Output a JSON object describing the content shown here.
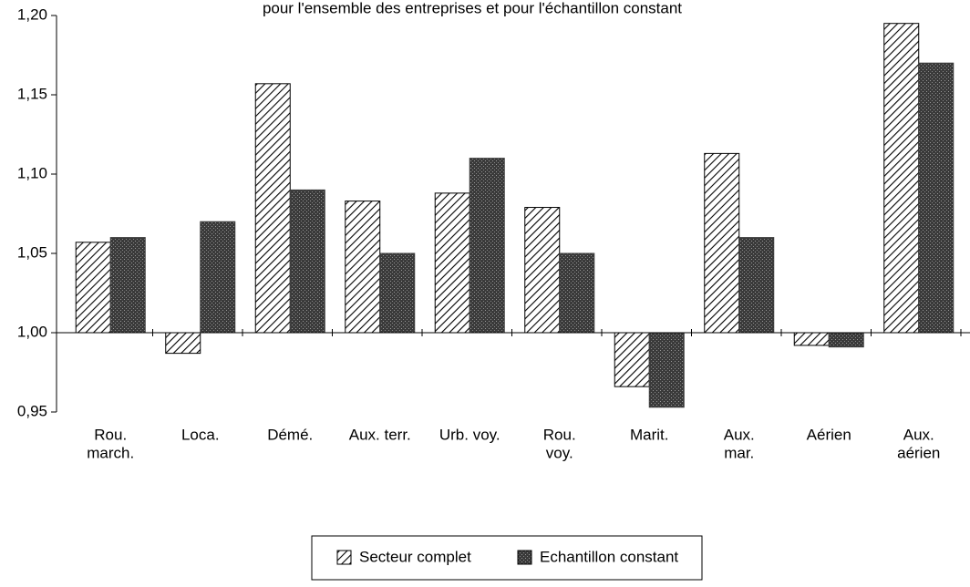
{
  "chart_data": {
    "type": "bar",
    "title": "pour l'ensemble des entreprises et pour l'échantillon constant",
    "categories": [
      [
        "Rou.",
        "march."
      ],
      [
        "Loca."
      ],
      [
        "Démé."
      ],
      [
        "Aux. terr."
      ],
      [
        "Urb. voy."
      ],
      [
        "Rou.",
        "voy."
      ],
      [
        "Marit."
      ],
      [
        "Aux.",
        "mar."
      ],
      [
        "Aérien"
      ],
      [
        "Aux.",
        "aérien"
      ]
    ],
    "series": [
      {
        "name": "Secteur complet",
        "color": "#000000",
        "pattern": "hatch",
        "values": [
          1.057,
          0.987,
          1.157,
          1.083,
          1.088,
          1.079,
          0.966,
          1.113,
          0.992,
          1.195
        ]
      },
      {
        "name": "Echantillon constant",
        "color": "#3a3a3a",
        "pattern": "stipple",
        "values": [
          1.06,
          1.07,
          1.09,
          1.05,
          1.11,
          1.05,
          0.953,
          1.06,
          0.991,
          1.17
        ]
      }
    ],
    "baseline": 1,
    "ylim": [
      0.95,
      1.2
    ],
    "yticks": [
      {
        "value": 0.95,
        "label": "0,95"
      },
      {
        "value": 1.0,
        "label": "1,00"
      },
      {
        "value": 1.05,
        "label": "1,05"
      },
      {
        "value": 1.1,
        "label": "1,10"
      },
      {
        "value": 1.15,
        "label": "1,15"
      },
      {
        "value": 1.2,
        "label": "1,20"
      }
    ],
    "grid": false,
    "legend": "bottom"
  }
}
